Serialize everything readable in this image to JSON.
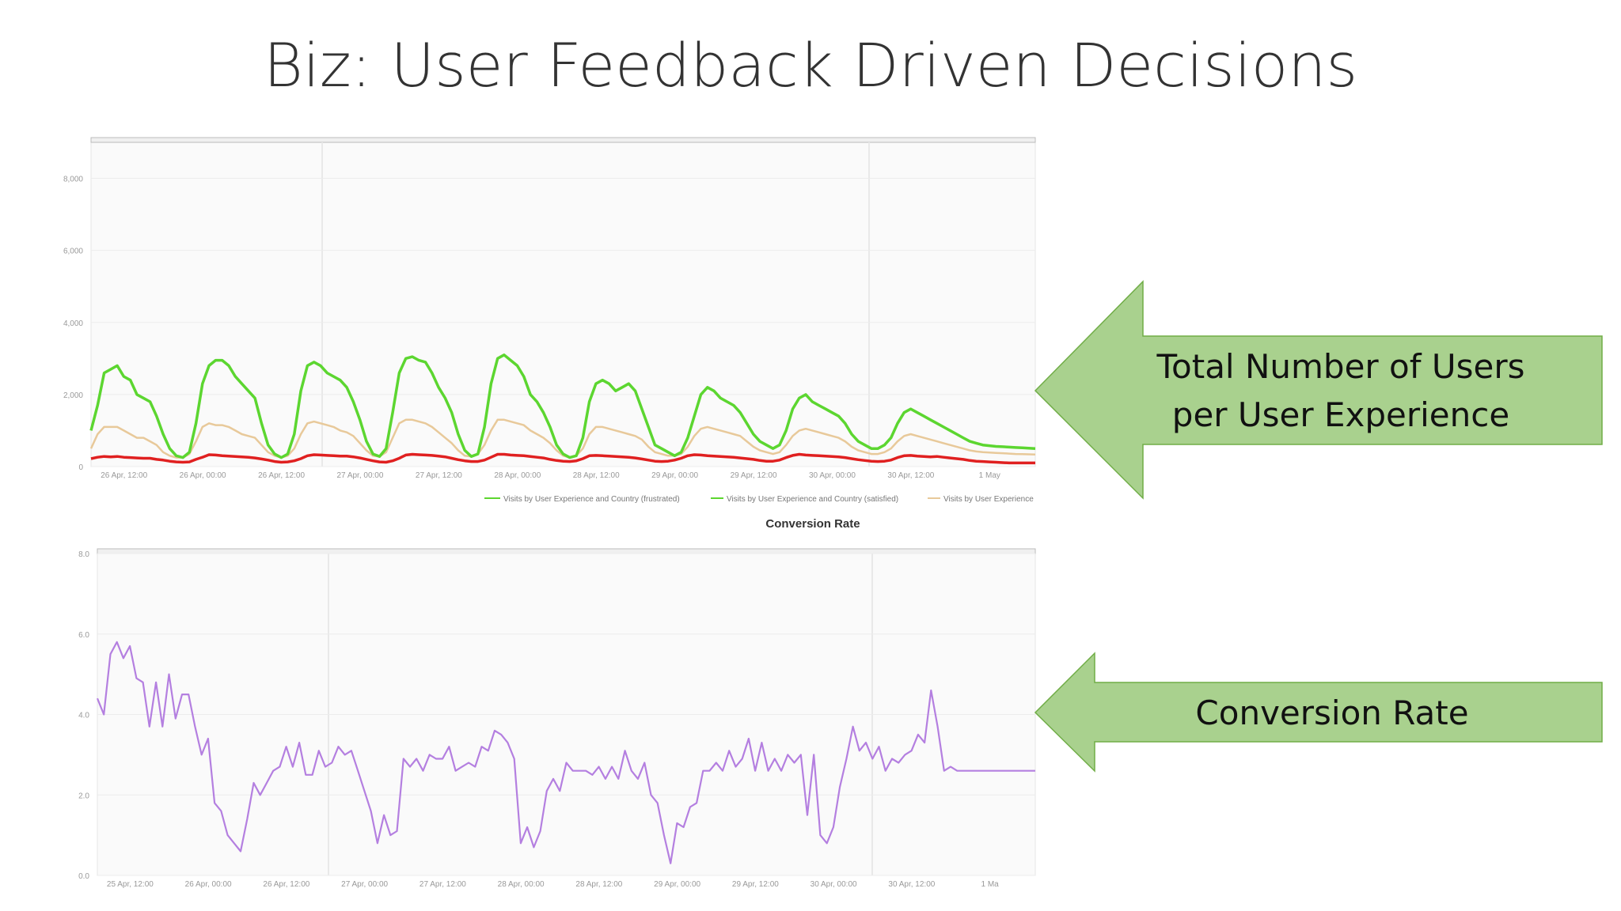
{
  "slide": {
    "title": "Biz: User Feedback Driven Decisions"
  },
  "callouts": {
    "users_line1": "Total Number of Users",
    "users_line2": "per User Experience",
    "conversion": "Conversion Rate",
    "fill": "#a9d18e",
    "stroke": "#70ad47"
  },
  "chart_data": [
    {
      "type": "line",
      "title": "",
      "xlabel": "",
      "ylabel": "",
      "ylim": [
        0,
        9000
      ],
      "y_ticks": [
        "0",
        "2,000",
        "4,000",
        "6,000",
        "8,000"
      ],
      "y_tick_values": [
        0,
        2000,
        4000,
        6000,
        8000
      ],
      "grid": true,
      "legend_position": "bottom",
      "x_tick_labels": [
        "26 Apr, 12:00",
        "26 Apr, 00:00",
        "26 Apr, 12:00",
        "27 Apr, 00:00",
        "27 Apr, 12:00",
        "28 Apr, 00:00",
        "28 Apr, 12:00",
        "29 Apr, 00:00",
        "29 Apr, 12:00",
        "30 Apr, 00:00",
        "30 Apr, 12:00",
        "1 May"
      ],
      "x": [
        0,
        0.5,
        1,
        1.5,
        2,
        2.5,
        3,
        3.5,
        4,
        4.5,
        5,
        5.5,
        6,
        6.5,
        7,
        7.5,
        8,
        8.5,
        9,
        9.5,
        10,
        10.5,
        11,
        11.5,
        12,
        12.5,
        13,
        13.5,
        14,
        14.5,
        15,
        15.5,
        16,
        16.5,
        17,
        17.5,
        18,
        18.5,
        19,
        19.5,
        20,
        20.5,
        21,
        21.5,
        22,
        22.5,
        23,
        23.5,
        24,
        24.5,
        25,
        25.5,
        26,
        26.5,
        27,
        27.5,
        28,
        28.5,
        29,
        29.5,
        30,
        30.5,
        31,
        31.5,
        32,
        32.5,
        33,
        33.5,
        34,
        34.5,
        35,
        35.5,
        36,
        36.5,
        37,
        37.5,
        38,
        38.5,
        39,
        39.5,
        40,
        40.5,
        41,
        41.5,
        42,
        42.5,
        43,
        43.5,
        44,
        44.5,
        45,
        45.5,
        46,
        46.5,
        47,
        47.5,
        48,
        48.5,
        49,
        49.5,
        50,
        50.5,
        51,
        51.5,
        52,
        52.5,
        53,
        53.5,
        54,
        54.5,
        55,
        55.5,
        56,
        56.5,
        57,
        57.5,
        58,
        58.5,
        59,
        59.5,
        60,
        60.5,
        61,
        61.5,
        62,
        62.5,
        63,
        63.5,
        64,
        64.5,
        65,
        65.5,
        66,
        66.5,
        67,
        67.5,
        68,
        68.5,
        69,
        69.5,
        70,
        70.5,
        71,
        71.5,
        72
      ],
      "series": [
        {
          "name": "Visits by User Experience and Country (frustrated)",
          "color": "#e02020",
          "values": [
            220,
            260,
            280,
            270,
            280,
            260,
            250,
            240,
            230,
            230,
            200,
            180,
            150,
            130,
            120,
            130,
            200,
            260,
            330,
            320,
            300,
            290,
            280,
            270,
            260,
            240,
            210,
            180,
            140,
            120,
            130,
            160,
            220,
            300,
            330,
            320,
            310,
            300,
            290,
            290,
            270,
            240,
            200,
            160,
            130,
            120,
            160,
            230,
            320,
            340,
            330,
            320,
            310,
            290,
            270,
            230,
            190,
            160,
            140,
            140,
            180,
            260,
            340,
            340,
            320,
            310,
            300,
            280,
            260,
            240,
            200,
            170,
            150,
            140,
            160,
            220,
            300,
            310,
            300,
            290,
            280,
            270,
            260,
            240,
            210,
            180,
            150,
            140,
            150,
            180,
            230,
            300,
            330,
            320,
            300,
            290,
            280,
            270,
            260,
            240,
            220,
            200,
            170,
            150,
            150,
            180,
            250,
            310,
            340,
            320,
            310,
            300,
            290,
            280,
            270,
            250,
            220,
            190,
            170,
            150,
            140,
            150,
            180,
            250,
            300,
            310,
            290,
            280,
            270,
            280,
            260,
            240,
            220,
            200,
            170,
            150,
            140,
            130,
            120,
            110,
            100,
            100,
            100,
            100,
            100
          ]
        },
        {
          "name": "Visits by User Experience and Country (satisfied)",
          "color": "#5cd630",
          "values": [
            1000,
            1700,
            2600,
            2700,
            2800,
            2500,
            2400,
            2000,
            1900,
            1800,
            1400,
            900,
            500,
            300,
            250,
            400,
            1200,
            2300,
            2800,
            2950,
            2950,
            2800,
            2500,
            2300,
            2100,
            1900,
            1200,
            600,
            350,
            250,
            350,
            900,
            2100,
            2800,
            2900,
            2800,
            2600,
            2500,
            2400,
            2200,
            1800,
            1300,
            700,
            350,
            280,
            500,
            1500,
            2600,
            3000,
            3050,
            2950,
            2900,
            2600,
            2200,
            1900,
            1500,
            900,
            450,
            280,
            350,
            1100,
            2300,
            3000,
            3100,
            2950,
            2800,
            2500,
            2000,
            1800,
            1500,
            1100,
            600,
            350,
            250,
            300,
            800,
            1800,
            2300,
            2400,
            2300,
            2100,
            2200,
            2300,
            2100,
            1600,
            1100,
            600,
            500,
            400,
            300,
            400,
            800,
            1400,
            2000,
            2200,
            2100,
            1900,
            1800,
            1700,
            1500,
            1200,
            900,
            700,
            600,
            500,
            600,
            1000,
            1600,
            1900,
            2000,
            1800,
            1700,
            1600,
            1500,
            1400,
            1200,
            900,
            700,
            600,
            500,
            500,
            600,
            800,
            1200,
            1500,
            1600,
            1500,
            1400,
            1300,
            1200,
            1100,
            1000,
            900,
            800,
            700,
            650,
            600,
            580,
            560,
            550,
            540,
            530,
            520,
            510,
            500
          ]
        },
        {
          "name": "Visits by User Experience",
          "color": "#e8c99a",
          "values": [
            500,
            900,
            1100,
            1100,
            1100,
            1000,
            900,
            800,
            800,
            700,
            600,
            400,
            300,
            250,
            250,
            350,
            700,
            1100,
            1200,
            1150,
            1150,
            1100,
            1000,
            900,
            850,
            800,
            600,
            400,
            300,
            250,
            300,
            500,
            900,
            1200,
            1250,
            1200,
            1150,
            1100,
            1000,
            950,
            850,
            650,
            450,
            300,
            280,
            400,
            800,
            1200,
            1300,
            1300,
            1250,
            1200,
            1100,
            950,
            800,
            650,
            450,
            300,
            280,
            350,
            600,
            1000,
            1300,
            1300,
            1250,
            1200,
            1150,
            1000,
            900,
            800,
            650,
            450,
            300,
            250,
            300,
            500,
            900,
            1100,
            1100,
            1050,
            1000,
            950,
            900,
            850,
            750,
            550,
            400,
            350,
            300,
            300,
            350,
            550,
            850,
            1050,
            1100,
            1050,
            1000,
            950,
            900,
            850,
            700,
            550,
            450,
            400,
            350,
            400,
            600,
            850,
            1000,
            1050,
            1000,
            950,
            900,
            850,
            800,
            700,
            550,
            450,
            400,
            350,
            350,
            400,
            500,
            700,
            850,
            900,
            850,
            800,
            750,
            700,
            650,
            600,
            550,
            500,
            450,
            420,
            400,
            390,
            380,
            370,
            360,
            350,
            345,
            340,
            335
          ]
        }
      ]
    },
    {
      "type": "line",
      "title": "Conversion Rate",
      "xlabel": "",
      "ylabel": "",
      "ylim": [
        0,
        8
      ],
      "y_ticks": [
        "0.0",
        "2.0",
        "4.0",
        "6.0",
        "8.0"
      ],
      "y_tick_values": [
        0,
        2,
        4,
        6,
        8
      ],
      "grid": true,
      "legend_position": "none",
      "x_tick_labels": [
        "25 Apr, 12:00",
        "26 Apr, 00:00",
        "26 Apr, 12:00",
        "27 Apr, 00:00",
        "27 Apr, 12:00",
        "28 Apr, 00:00",
        "28 Apr, 12:00",
        "29 Apr, 00:00",
        "29 Apr, 12:00",
        "30 Apr, 00:00",
        "30 Apr, 12:00",
        "1 Ma"
      ],
      "x": [
        0,
        0.5,
        1,
        1.5,
        2,
        2.5,
        3,
        3.5,
        4,
        4.5,
        5,
        5.5,
        6,
        6.5,
        7,
        7.5,
        8,
        8.5,
        9,
        9.5,
        10,
        10.5,
        11,
        11.5,
        12,
        12.5,
        13,
        13.5,
        14,
        14.5,
        15,
        15.5,
        16,
        16.5,
        17,
        17.5,
        18,
        18.5,
        19,
        19.5,
        20,
        20.5,
        21,
        21.5,
        22,
        22.5,
        23,
        23.5,
        24,
        24.5,
        25,
        25.5,
        26,
        26.5,
        27,
        27.5,
        28,
        28.5,
        29,
        29.5,
        30,
        30.5,
        31,
        31.5,
        32,
        32.5,
        33,
        33.5,
        34,
        34.5,
        35,
        35.5,
        36,
        36.5,
        37,
        37.5,
        38,
        38.5,
        39,
        39.5,
        40,
        40.5,
        41,
        41.5,
        42,
        42.5,
        43,
        43.5,
        44,
        44.5,
        45,
        45.5,
        46,
        46.5,
        47,
        47.5,
        48,
        48.5,
        49,
        49.5,
        50,
        50.5,
        51,
        51.5,
        52,
        52.5,
        53,
        53.5,
        54,
        54.5,
        55,
        55.5,
        56,
        56.5,
        57,
        57.5,
        58,
        58.5,
        59,
        59.5,
        60,
        60.5,
        61,
        61.5,
        62,
        62.5,
        63,
        63.5,
        64,
        64.5,
        65,
        65.5,
        66,
        66.5,
        67,
        67.5,
        68,
        68.5,
        69,
        69.5,
        70,
        70.5,
        71,
        71.5,
        72
      ],
      "series": [
        {
          "name": "",
          "color": "#b47fe0",
          "values": [
            4.4,
            4.0,
            5.5,
            5.8,
            5.4,
            5.7,
            4.9,
            4.8,
            3.7,
            4.8,
            3.7,
            5.0,
            3.9,
            4.5,
            4.5,
            3.7,
            3.0,
            3.4,
            1.8,
            1.6,
            1.0,
            0.8,
            0.6,
            1.4,
            2.3,
            2.0,
            2.3,
            2.6,
            2.7,
            3.2,
            2.7,
            3.3,
            2.5,
            2.5,
            3.1,
            2.7,
            2.8,
            3.2,
            3.0,
            3.1,
            2.6,
            2.1,
            1.6,
            0.8,
            1.5,
            1.0,
            1.1,
            2.9,
            2.7,
            2.9,
            2.6,
            3.0,
            2.9,
            2.9,
            3.2,
            2.6,
            2.7,
            2.8,
            2.7,
            3.2,
            3.1,
            3.6,
            3.5,
            3.3,
            2.9,
            0.8,
            1.2,
            0.7,
            1.1,
            2.1,
            2.4,
            2.1,
            2.8,
            2.6,
            2.6,
            2.6,
            2.5,
            2.7,
            2.4,
            2.7,
            2.4,
            3.1,
            2.6,
            2.4,
            2.8,
            2.0,
            1.8,
            1.0,
            0.3,
            1.3,
            1.2,
            1.7,
            1.8,
            2.6,
            2.6,
            2.8,
            2.6,
            3.1,
            2.7,
            2.9,
            3.4,
            2.6,
            3.3,
            2.6,
            2.9,
            2.6,
            3.0,
            2.8,
            3.0,
            1.5,
            3.0,
            1.0,
            0.8,
            1.2,
            2.2,
            2.9,
            3.7,
            3.1,
            3.3,
            2.9,
            3.2,
            2.6,
            2.9,
            2.8,
            3.0,
            3.1,
            3.5,
            3.3,
            4.6,
            3.7,
            2.6,
            2.7,
            2.6,
            2.6,
            2.6,
            2.6,
            2.6,
            2.6,
            2.6,
            2.6,
            2.6,
            2.6,
            2.6,
            2.6,
            2.6
          ]
        }
      ]
    }
  ]
}
